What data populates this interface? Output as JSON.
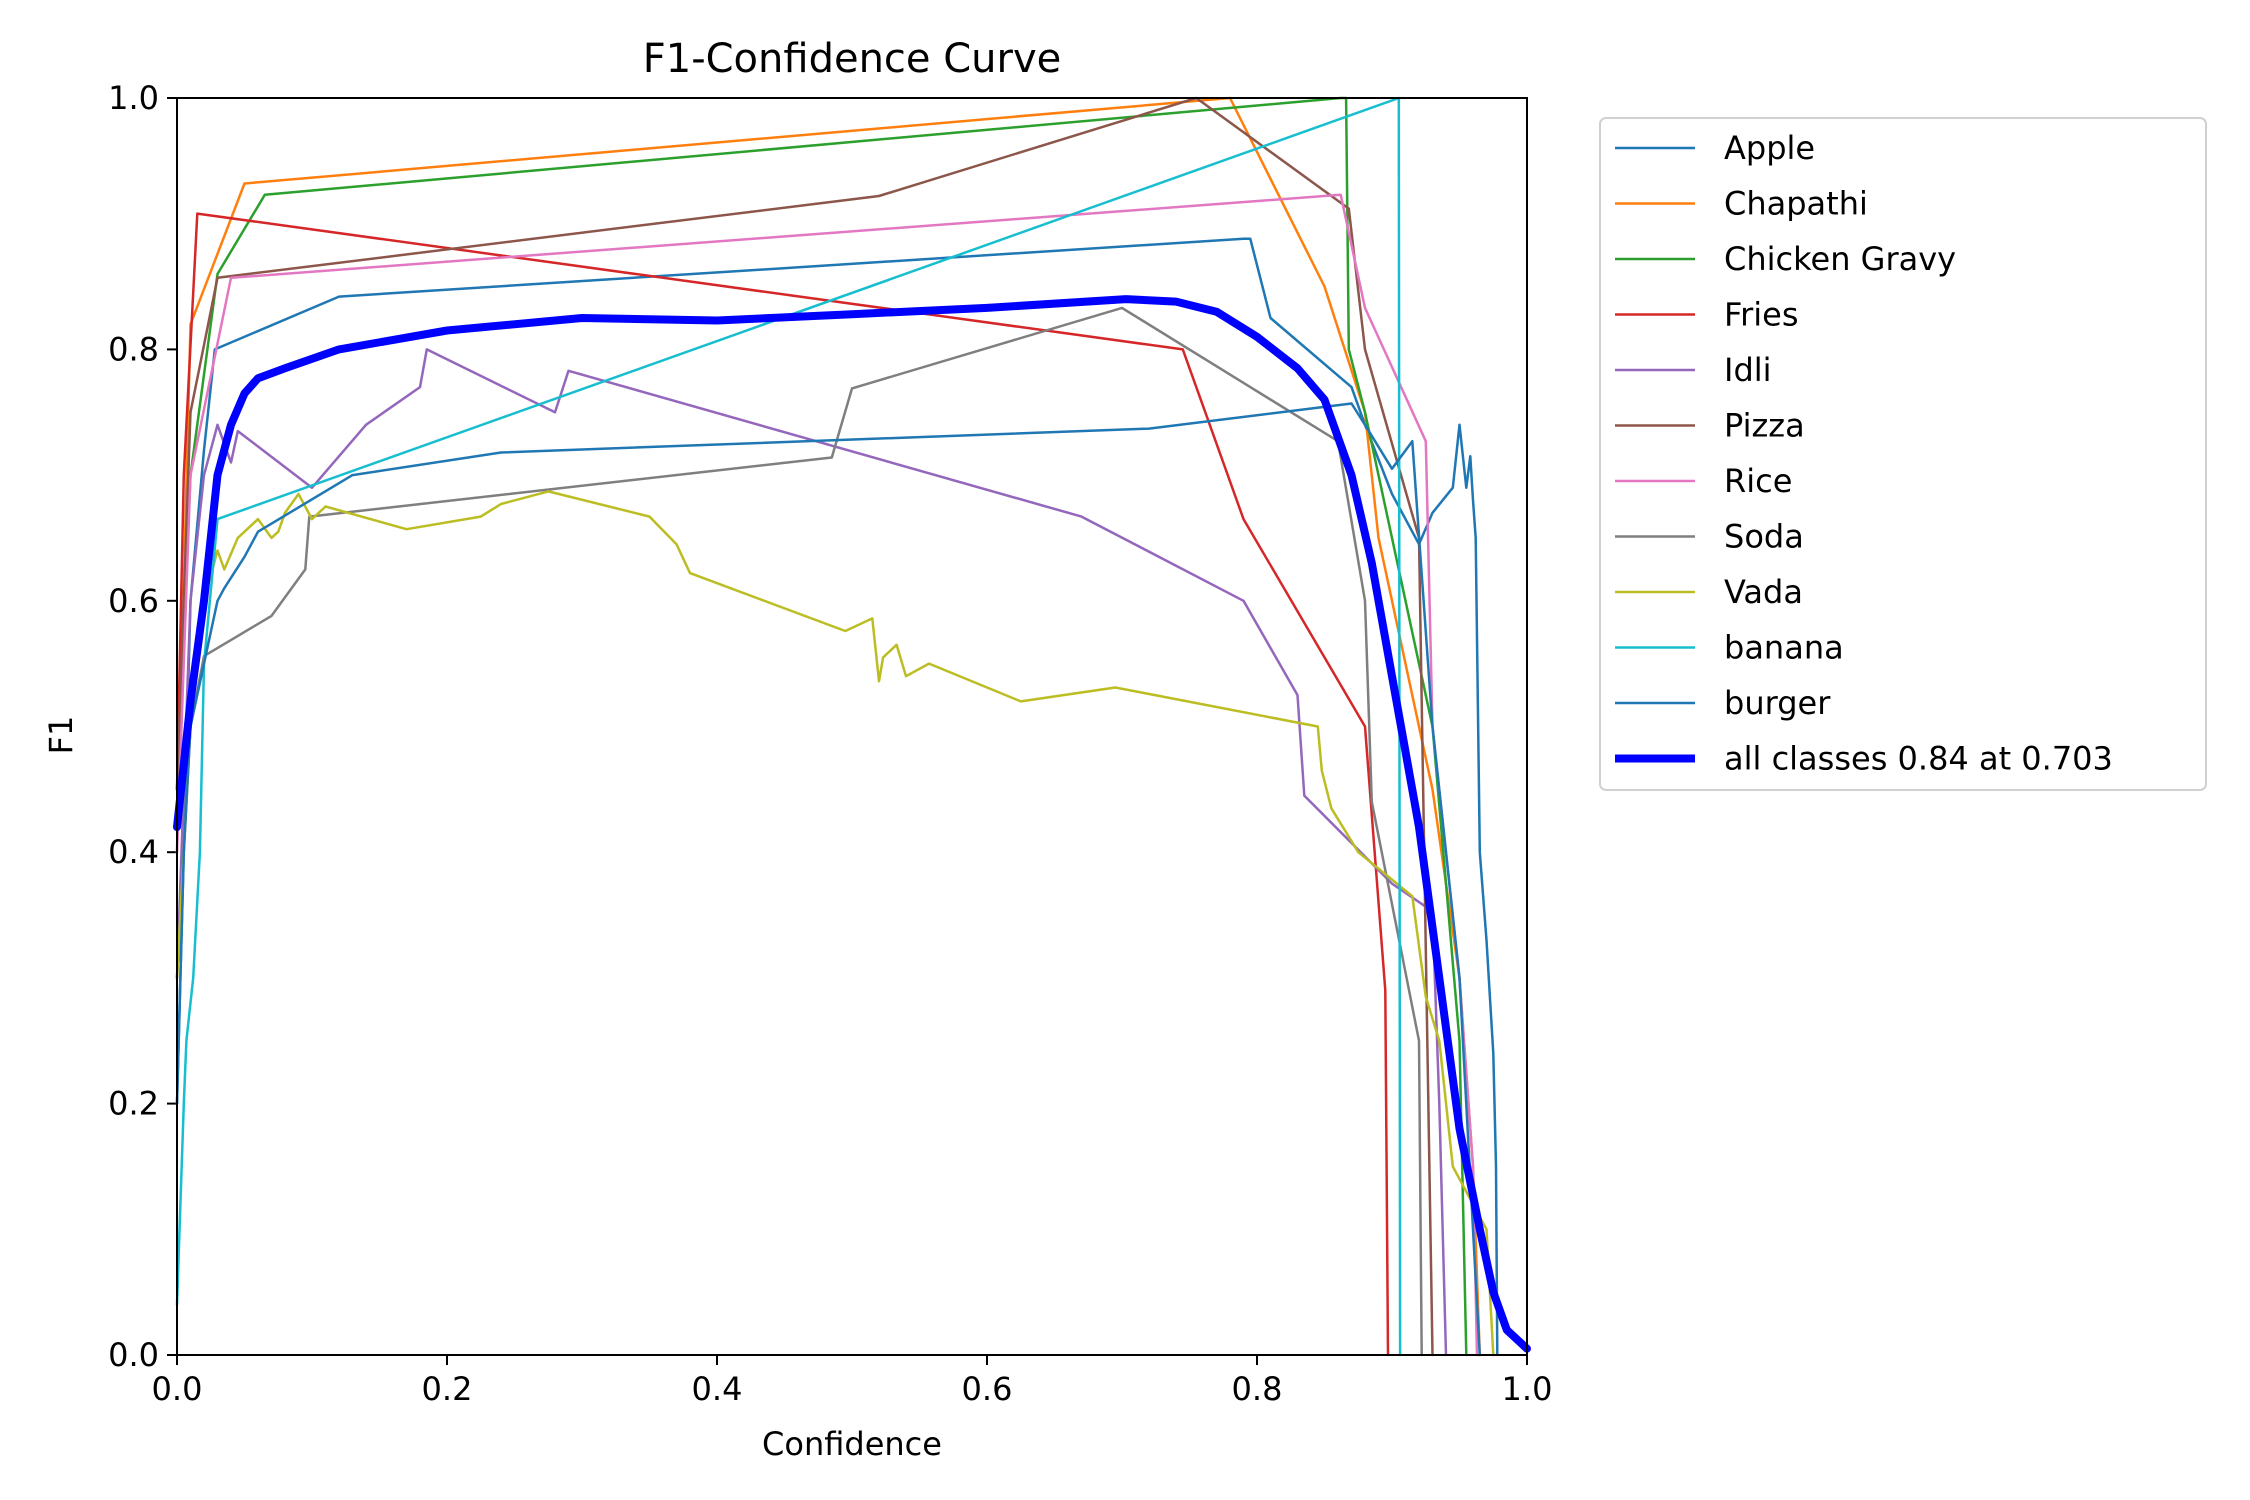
{
  "chart_data": {
    "type": "line",
    "title": "F1-Confidence Curve",
    "xlabel": "Confidence",
    "ylabel": "F1",
    "xlim": [
      0,
      1
    ],
    "ylim": [
      0,
      1
    ],
    "xticks": [
      "0.0",
      "0.2",
      "0.4",
      "0.6",
      "0.8",
      "1.0"
    ],
    "yticks": [
      "0.0",
      "0.2",
      "0.4",
      "0.6",
      "0.8",
      "1.0"
    ],
    "grid": false,
    "legend_position": "outside-right",
    "series": [
      {
        "name": "Apple",
        "color": "#1f77b4",
        "points": [
          [
            0.0,
            0.2
          ],
          [
            0.005,
            0.4
          ],
          [
            0.01,
            0.6
          ],
          [
            0.02,
            0.72
          ],
          [
            0.028,
            0.8
          ],
          [
            0.12,
            0.842
          ],
          [
            0.79,
            0.888
          ],
          [
            0.795,
            0.888
          ],
          [
            0.81,
            0.825
          ],
          [
            0.87,
            0.77
          ],
          [
            0.88,
            0.74
          ],
          [
            0.9,
            0.685
          ],
          [
            0.92,
            0.645
          ],
          [
            0.93,
            0.67
          ],
          [
            0.945,
            0.69
          ],
          [
            0.95,
            0.74
          ],
          [
            0.955,
            0.69
          ],
          [
            0.958,
            0.715
          ],
          [
            0.96,
            0.68
          ],
          [
            0.962,
            0.65
          ],
          [
            0.965,
            0.4
          ],
          [
            0.97,
            0.33
          ],
          [
            0.975,
            0.24
          ],
          [
            0.977,
            0.15
          ],
          [
            0.978,
            0.0
          ]
        ]
      },
      {
        "name": "Chapathi",
        "color": "#ff7f0e",
        "points": [
          [
            0.0,
            0.4
          ],
          [
            0.01,
            0.82
          ],
          [
            0.05,
            0.932
          ],
          [
            0.78,
            1.0
          ],
          [
            0.85,
            0.85
          ],
          [
            0.88,
            0.75
          ],
          [
            0.89,
            0.65
          ],
          [
            0.9,
            0.6
          ],
          [
            0.93,
            0.45
          ],
          [
            0.95,
            0.3
          ],
          [
            0.96,
            0.15
          ],
          [
            0.965,
            0.0
          ]
        ]
      },
      {
        "name": "Chicken Gravy",
        "color": "#2ca02c",
        "points": [
          [
            0.0,
            0.45
          ],
          [
            0.01,
            0.7
          ],
          [
            0.03,
            0.86
          ],
          [
            0.065,
            0.923
          ],
          [
            0.862,
            1.0
          ],
          [
            0.866,
            1.0
          ],
          [
            0.868,
            0.8
          ],
          [
            0.88,
            0.75
          ],
          [
            0.93,
            0.5
          ],
          [
            0.95,
            0.25
          ],
          [
            0.955,
            0.0
          ]
        ]
      },
      {
        "name": "Fries",
        "color": "#d62728",
        "points": [
          [
            0.0,
            0.45
          ],
          [
            0.005,
            0.7
          ],
          [
            0.015,
            0.908
          ],
          [
            0.745,
            0.8
          ],
          [
            0.79,
            0.665
          ],
          [
            0.88,
            0.5
          ],
          [
            0.895,
            0.29
          ],
          [
            0.897,
            0.0
          ]
        ]
      },
      {
        "name": "Idli",
        "color": "#9467bd",
        "points": [
          [
            0.0,
            0.3
          ],
          [
            0.01,
            0.6
          ],
          [
            0.02,
            0.7
          ],
          [
            0.03,
            0.74
          ],
          [
            0.04,
            0.71
          ],
          [
            0.045,
            0.735
          ],
          [
            0.1,
            0.69
          ],
          [
            0.14,
            0.74
          ],
          [
            0.18,
            0.77
          ],
          [
            0.185,
            0.8
          ],
          [
            0.28,
            0.75
          ],
          [
            0.29,
            0.783
          ],
          [
            0.67,
            0.667
          ],
          [
            0.79,
            0.6
          ],
          [
            0.83,
            0.525
          ],
          [
            0.835,
            0.445
          ],
          [
            0.9,
            0.375
          ],
          [
            0.93,
            0.353
          ],
          [
            0.935,
            0.2
          ],
          [
            0.94,
            0.0
          ]
        ]
      },
      {
        "name": "Pizza",
        "color": "#8c564b",
        "points": [
          [
            0.0,
            0.45
          ],
          [
            0.01,
            0.75
          ],
          [
            0.03,
            0.857
          ],
          [
            0.52,
            0.922
          ],
          [
            0.755,
            1.0
          ],
          [
            0.868,
            0.912
          ],
          [
            0.88,
            0.8
          ],
          [
            0.92,
            0.65
          ],
          [
            0.93,
            0.0
          ]
        ]
      },
      {
        "name": "Rice",
        "color": "#e377c2",
        "points": [
          [
            0.0,
            0.4
          ],
          [
            0.01,
            0.7
          ],
          [
            0.04,
            0.857
          ],
          [
            0.862,
            0.923
          ],
          [
            0.88,
            0.833
          ],
          [
            0.925,
            0.727
          ],
          [
            0.93,
            0.5
          ],
          [
            0.95,
            0.3
          ],
          [
            0.96,
            0.15
          ],
          [
            0.963,
            0.0
          ]
        ]
      },
      {
        "name": "Soda",
        "color": "#7f7f7f",
        "points": [
          [
            0.0,
            0.3
          ],
          [
            0.01,
            0.5
          ],
          [
            0.02,
            0.556
          ],
          [
            0.07,
            0.588
          ],
          [
            0.095,
            0.625
          ],
          [
            0.098,
            0.667
          ],
          [
            0.485,
            0.714
          ],
          [
            0.5,
            0.769
          ],
          [
            0.7,
            0.833
          ],
          [
            0.86,
            0.727
          ],
          [
            0.88,
            0.6
          ],
          [
            0.885,
            0.44
          ],
          [
            0.92,
            0.25
          ],
          [
            0.922,
            0.0
          ]
        ]
      },
      {
        "name": "Vada",
        "color": "#bcbd22",
        "points": [
          [
            0.0,
            0.3
          ],
          [
            0.01,
            0.5
          ],
          [
            0.02,
            0.6
          ],
          [
            0.03,
            0.64
          ],
          [
            0.035,
            0.625
          ],
          [
            0.045,
            0.65
          ],
          [
            0.06,
            0.665
          ],
          [
            0.07,
            0.65
          ],
          [
            0.075,
            0.655
          ],
          [
            0.08,
            0.67
          ],
          [
            0.09,
            0.685
          ],
          [
            0.1,
            0.665
          ],
          [
            0.11,
            0.675
          ],
          [
            0.17,
            0.657
          ],
          [
            0.225,
            0.667
          ],
          [
            0.24,
            0.677
          ],
          [
            0.275,
            0.687
          ],
          [
            0.35,
            0.667
          ],
          [
            0.37,
            0.645
          ],
          [
            0.38,
            0.622
          ],
          [
            0.495,
            0.576
          ],
          [
            0.515,
            0.586
          ],
          [
            0.52,
            0.536
          ],
          [
            0.523,
            0.555
          ],
          [
            0.533,
            0.565
          ],
          [
            0.54,
            0.54
          ],
          [
            0.557,
            0.55
          ],
          [
            0.625,
            0.52
          ],
          [
            0.695,
            0.531
          ],
          [
            0.845,
            0.5
          ],
          [
            0.848,
            0.465
          ],
          [
            0.855,
            0.435
          ],
          [
            0.875,
            0.4
          ],
          [
            0.915,
            0.365
          ],
          [
            0.925,
            0.285
          ],
          [
            0.935,
            0.25
          ],
          [
            0.945,
            0.15
          ],
          [
            0.96,
            0.12
          ],
          [
            0.97,
            0.1
          ],
          [
            0.975,
            0.0
          ]
        ]
      },
      {
        "name": "banana",
        "color": "#17becf",
        "points": [
          [
            0.0,
            0.04
          ],
          [
            0.005,
            0.2
          ],
          [
            0.007,
            0.25
          ],
          [
            0.012,
            0.3
          ],
          [
            0.017,
            0.4
          ],
          [
            0.02,
            0.55
          ],
          [
            0.03,
            0.665
          ],
          [
            0.905,
            1.0
          ],
          [
            0.906,
            0.0
          ]
        ]
      },
      {
        "name": "burger",
        "color": "#1f77b4",
        "points": [
          [
            0.0,
            0.2
          ],
          [
            0.005,
            0.4
          ],
          [
            0.01,
            0.5
          ],
          [
            0.02,
            0.55
          ],
          [
            0.03,
            0.6
          ],
          [
            0.035,
            0.61
          ],
          [
            0.05,
            0.635
          ],
          [
            0.06,
            0.655
          ],
          [
            0.13,
            0.7
          ],
          [
            0.24,
            0.718
          ],
          [
            0.72,
            0.737
          ],
          [
            0.87,
            0.757
          ],
          [
            0.88,
            0.74
          ],
          [
            0.9,
            0.705
          ],
          [
            0.915,
            0.727
          ],
          [
            0.93,
            0.5
          ],
          [
            0.95,
            0.3
          ],
          [
            0.96,
            0.1
          ],
          [
            0.965,
            0.0
          ]
        ]
      },
      {
        "name": "all classes 0.84 at 0.703",
        "color": "#0000ff",
        "bold": true,
        "points": [
          [
            0.0,
            0.42
          ],
          [
            0.005,
            0.47
          ],
          [
            0.01,
            0.52
          ],
          [
            0.02,
            0.6
          ],
          [
            0.03,
            0.7
          ],
          [
            0.04,
            0.74
          ],
          [
            0.05,
            0.765
          ],
          [
            0.06,
            0.777
          ],
          [
            0.08,
            0.785
          ],
          [
            0.12,
            0.8
          ],
          [
            0.2,
            0.815
          ],
          [
            0.3,
            0.825
          ],
          [
            0.4,
            0.823
          ],
          [
            0.5,
            0.828
          ],
          [
            0.6,
            0.833
          ],
          [
            0.703,
            0.84
          ],
          [
            0.74,
            0.838
          ],
          [
            0.77,
            0.83
          ],
          [
            0.8,
            0.81
          ],
          [
            0.83,
            0.785
          ],
          [
            0.85,
            0.76
          ],
          [
            0.87,
            0.7
          ],
          [
            0.885,
            0.63
          ],
          [
            0.9,
            0.54
          ],
          [
            0.92,
            0.42
          ],
          [
            0.935,
            0.3
          ],
          [
            0.95,
            0.18
          ],
          [
            0.965,
            0.1
          ],
          [
            0.975,
            0.05
          ],
          [
            0.985,
            0.02
          ],
          [
            1.0,
            0.005
          ]
        ]
      }
    ]
  }
}
